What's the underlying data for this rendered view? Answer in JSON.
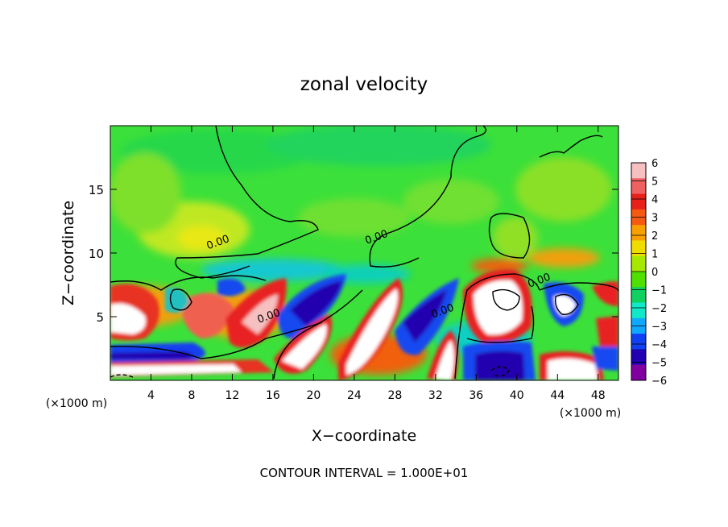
{
  "chart_data": {
    "type": "heatmap",
    "title": "zonal velocity",
    "xlabel": "X−coordinate",
    "ylabel": "Z−coordinate",
    "x_unit": "(×1000 m)",
    "x_unit_right": "(×1000 m)",
    "footer": "CONTOUR INTERVAL = 1.000E+01",
    "xlim": [
      0,
      50
    ],
    "ylim": [
      0,
      20
    ],
    "xticks": [
      "4",
      "8",
      "12",
      "16",
      "20",
      "24",
      "28",
      "32",
      "36",
      "40",
      "44",
      "48"
    ],
    "yticks": [
      "5",
      "10",
      "15"
    ],
    "colorbar": {
      "min": -6,
      "max": 6,
      "ticks": [
        "6",
        "5",
        "4",
        "3",
        "2",
        "1",
        "0",
        "−1",
        "−2",
        "−3",
        "−4",
        "−5",
        "−6"
      ],
      "colors": [
        "#f7c0c0",
        "#ef6060",
        "#e8201a",
        "#f55a10",
        "#f8a000",
        "#f0dc00",
        "#a8e800",
        "#50e000",
        "#10d060",
        "#10e8c8",
        "#10a8ff",
        "#1040f0",
        "#2000b0",
        "#8000a0"
      ]
    },
    "contour_labels": [
      {
        "text": "0.00",
        "x": 10.7,
        "y": 10.6
      },
      {
        "text": "0.00",
        "x": 26.3,
        "y": 11.0
      },
      {
        "text": "0.00",
        "x": 15.7,
        "y": 4.8
      },
      {
        "text": "0.00",
        "x": 32.8,
        "y": 5.2
      },
      {
        "text": "0.00",
        "x": 42.3,
        "y": 7.6
      }
    ]
  }
}
